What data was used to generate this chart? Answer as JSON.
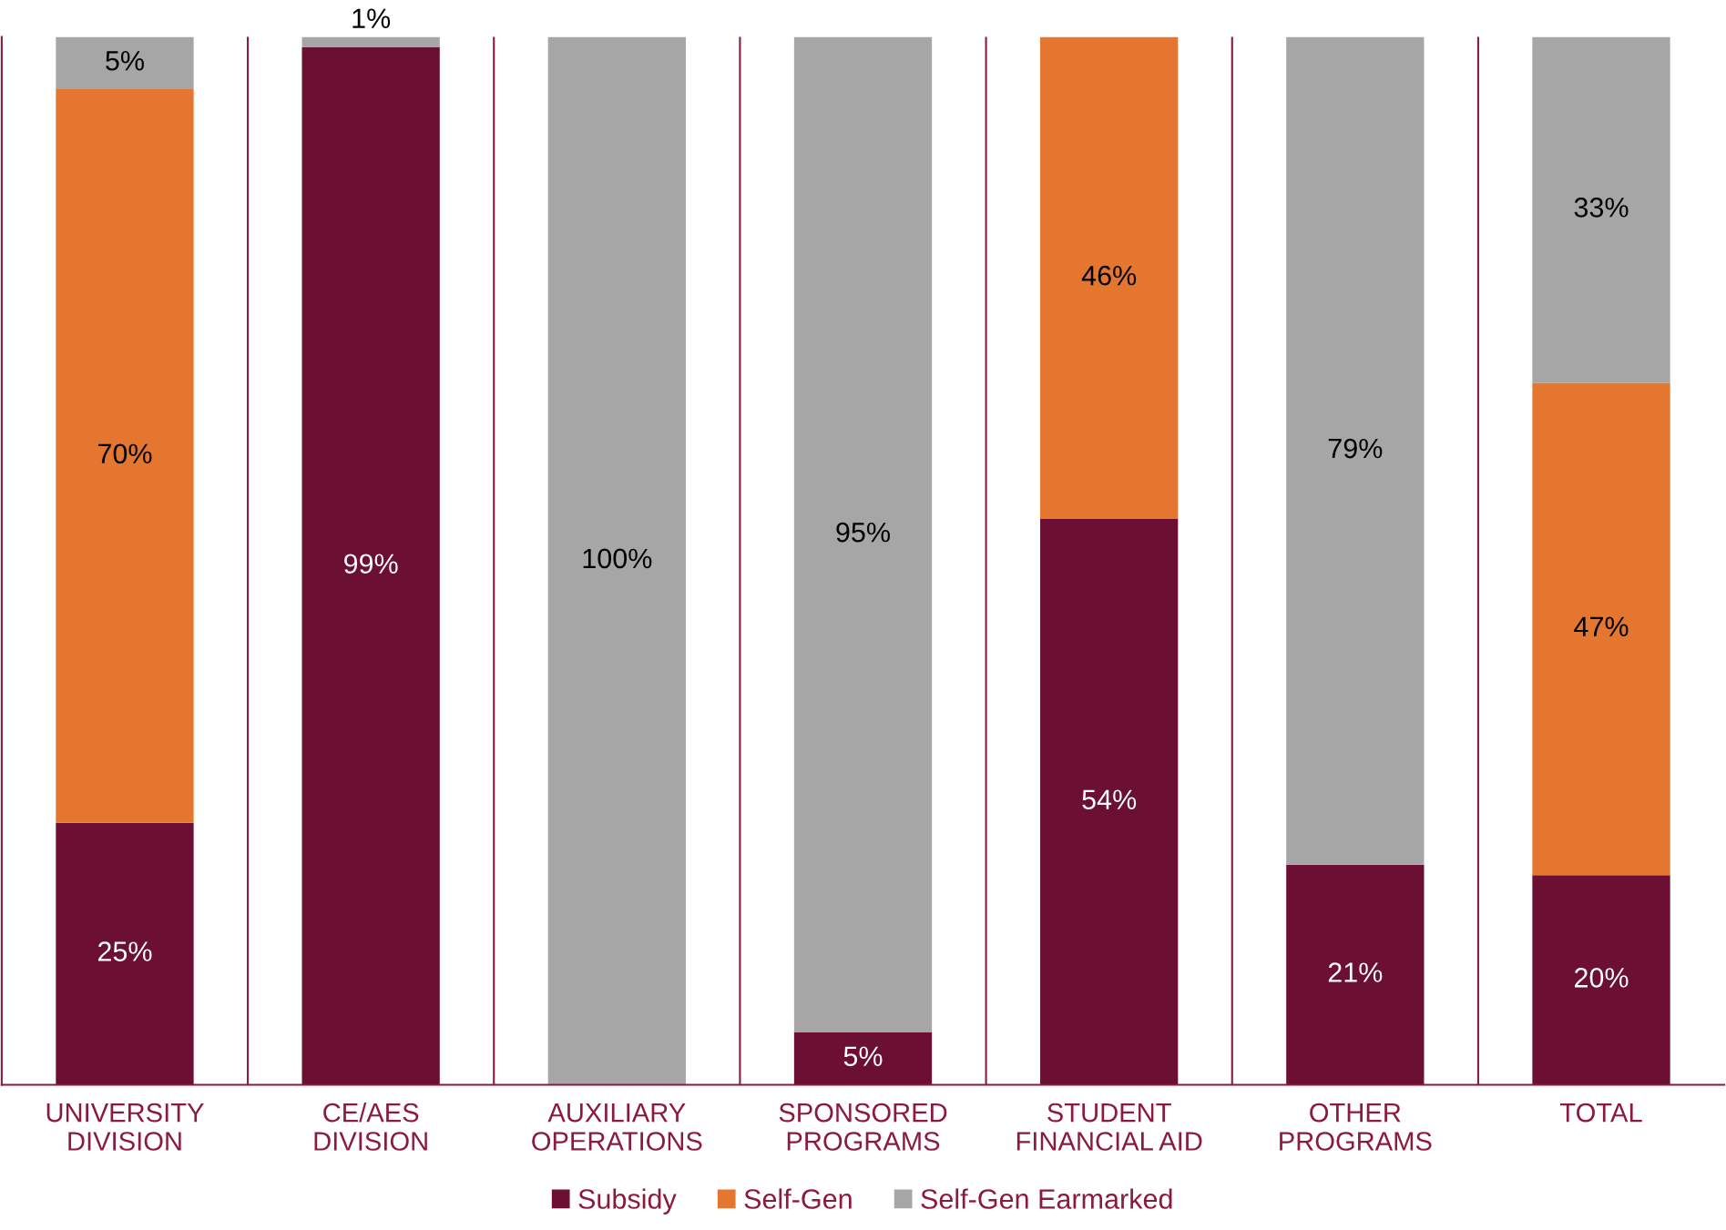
{
  "chart_data": {
    "type": "bar",
    "stacked": true,
    "categories": [
      "UNIVERSITY\nDIVISION",
      "CE/AES\nDIVISION",
      "AUXILIARY\nOPERATIONS",
      "SPONSORED\nPROGRAMS",
      "STUDENT\nFINANCIAL AID",
      "OTHER\nPROGRAMS",
      "TOTAL"
    ],
    "series": [
      {
        "name": "Subsidy",
        "color": "#6b0f33",
        "values": [
          25,
          99,
          0,
          5,
          54,
          21,
          20
        ],
        "value_labels": [
          "25%",
          "99%",
          null,
          "5%",
          "54%",
          "21%",
          "20%"
        ]
      },
      {
        "name": "Self-Gen",
        "color": "#e57630",
        "values": [
          70,
          0,
          0,
          0,
          46,
          0,
          47
        ],
        "value_labels": [
          "70%",
          null,
          null,
          null,
          "46%",
          null,
          "47%"
        ]
      },
      {
        "name": "Self-Gen Earmarked",
        "color": "#a6a6a6",
        "values": [
          5,
          1,
          100,
          95,
          0,
          79,
          33
        ],
        "value_labels": [
          "5%",
          "1%",
          "100%",
          "95%",
          null,
          "79%",
          "33%"
        ]
      }
    ],
    "ylim": [
      0,
      100
    ],
    "tick_labels": "x",
    "grid": false,
    "legend": "bottom"
  }
}
